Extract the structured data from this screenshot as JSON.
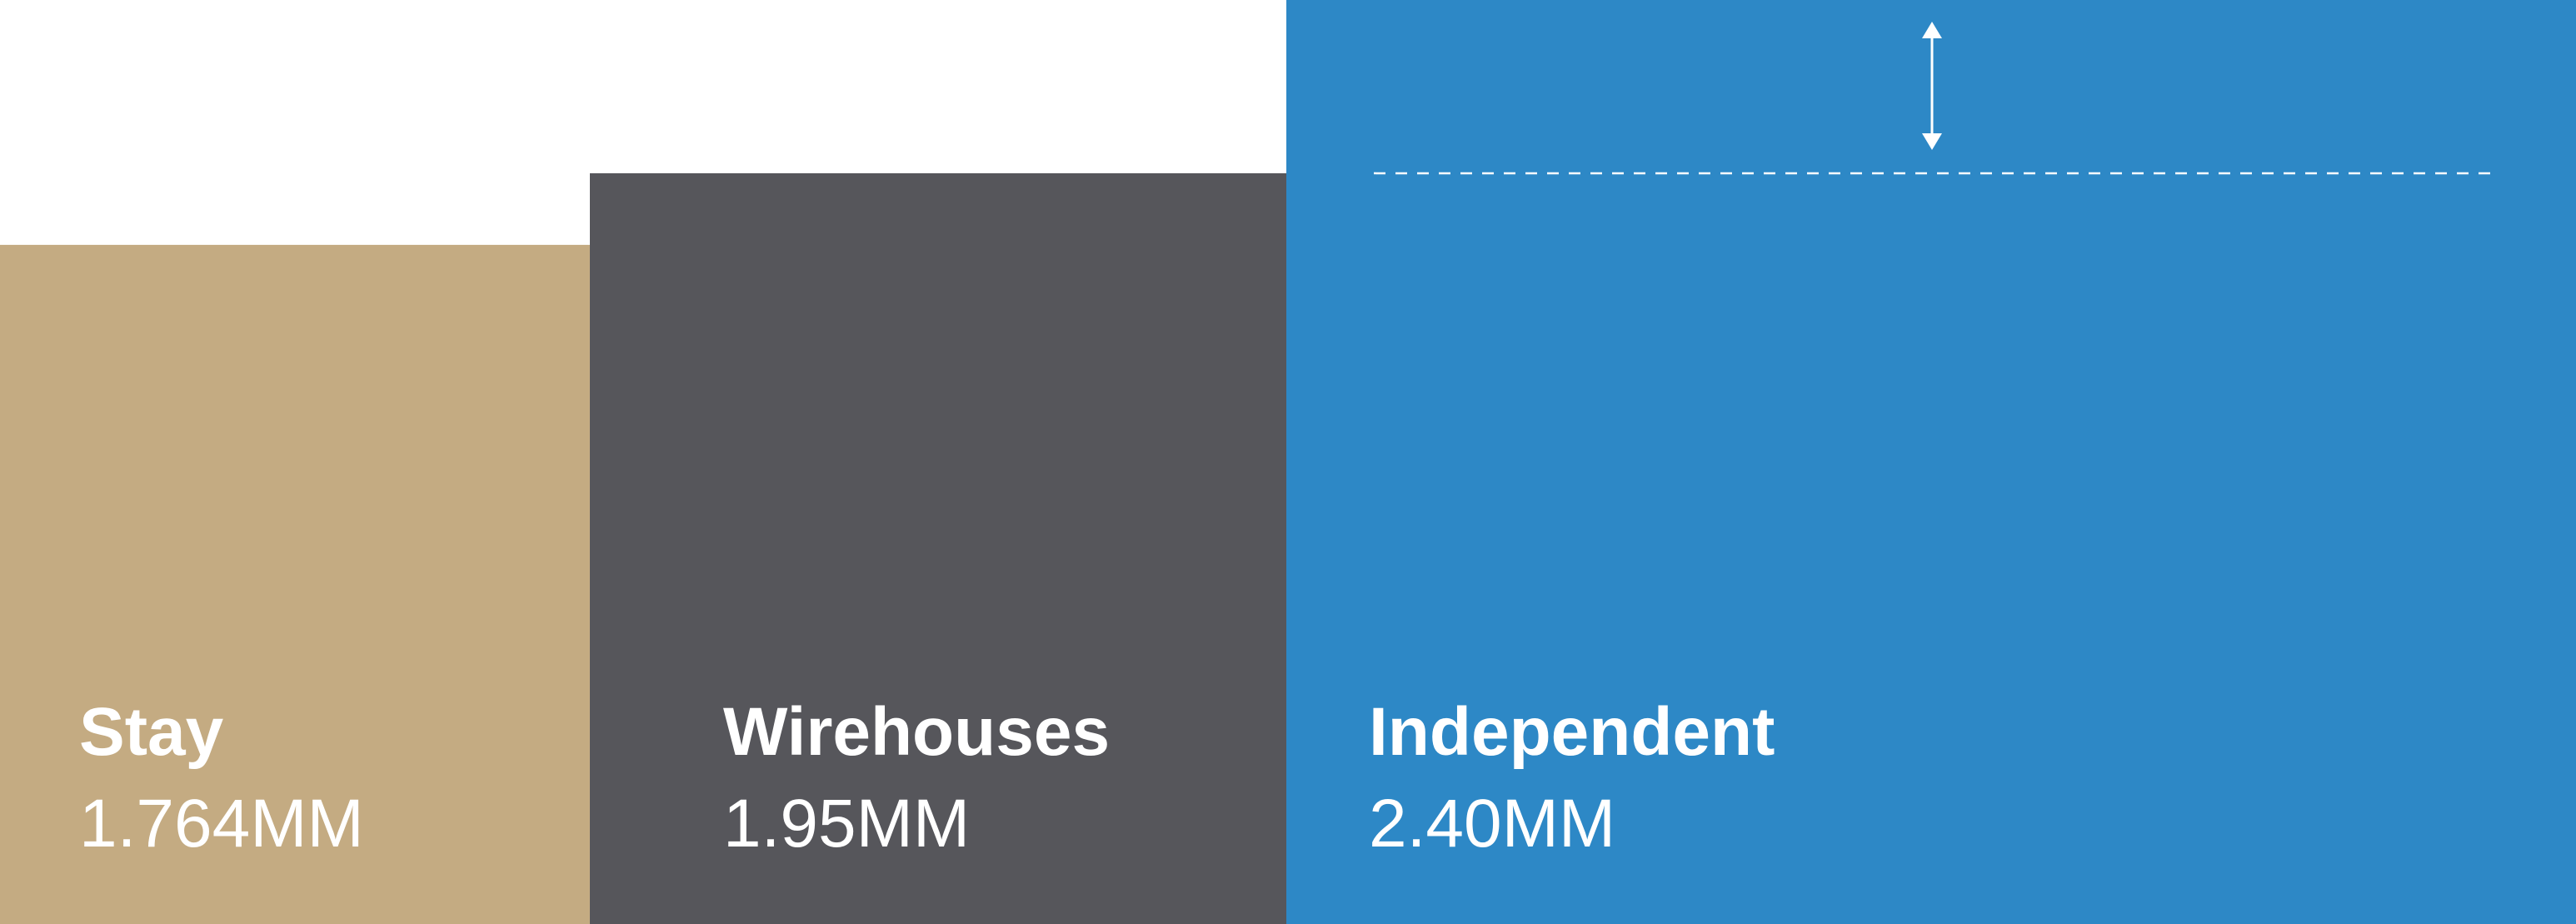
{
  "chart_data": {
    "type": "bar",
    "categories": [
      "Stay",
      "Wirehouses",
      "Independent"
    ],
    "values": [
      1.764,
      1.95,
      2.4
    ],
    "value_labels": [
      "1.764MM",
      "1.95MM",
      "2.40MM"
    ],
    "colors": [
      "#c4ab82",
      "#56565b",
      "#2d88c6"
    ],
    "ylim": [
      0,
      2.4
    ]
  }
}
